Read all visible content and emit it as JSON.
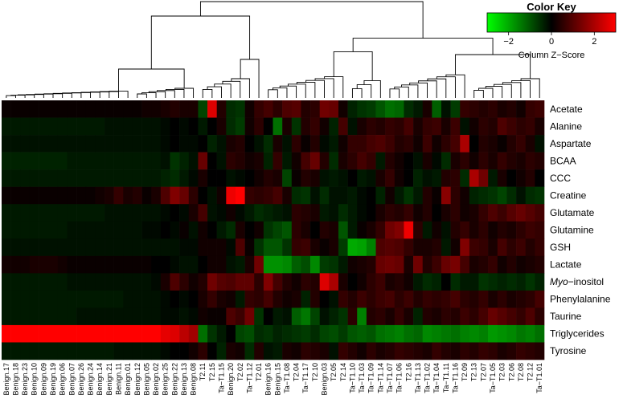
{
  "chart_data": {
    "type": "heatmap",
    "title": "",
    "rows": [
      "Acetate",
      "Alanine",
      "Aspartate",
      "BCAA",
      "CCC",
      "Creatine",
      "Glutamate",
      "Glutamine",
      "GSH",
      "Lactate",
      "Myo−inositol",
      "Phenylalanine",
      "Taurine",
      "Triglycerides",
      "Tyrosine"
    ],
    "row_label_parts": {
      "Myo−inositol": {
        "italic": "Myo",
        "rest": "−inositol"
      }
    },
    "columns": [
      "Benign.17",
      "Benign.18",
      "Benign.23",
      "Benign.10",
      "Benign.09",
      "Benign.19",
      "Benign.06",
      "Benign.07",
      "Benign.26",
      "Benign.24",
      "Benign.14",
      "Benign.21",
      "Benign.11",
      "Benign.01",
      "Benign.12",
      "Benign.05",
      "Benign.02",
      "Benign.25",
      "Benign.22",
      "Benign.13",
      "Benign.08",
      "T2.11",
      "T2.15",
      "Ta−T1.15",
      "Benign.20",
      "T2.02",
      "Ta−T1.12",
      "T2.01",
      "Benign.16",
      "Benign.15",
      "Ta−T1.08",
      "T2.04",
      "Ta−T1.17",
      "T2.10",
      "Benign.03",
      "T2.05",
      "T2.14",
      "Ta−T1.10",
      "Ta−T1.03",
      "Ta−T1.09",
      "Ta−T1.14",
      "Ta−T1.07",
      "Ta−T1.06",
      "T2.16",
      "Ta−T1.13",
      "Ta−T1.02",
      "Ta−T1.04",
      "Ta−T1.11",
      "Ta−T1.16",
      "T2.09",
      "T2.13",
      "T2.07",
      "Ta−T1.05",
      "T2.03",
      "T2.06",
      "T2.08",
      "T2.12",
      "Ta−T1.01"
    ],
    "zlim": [
      -3,
      3
    ],
    "color_scale": {
      "low": "#00ff00",
      "mid": "#000000",
      "high": "#ff0000"
    },
    "color_key": {
      "title": "Color Key",
      "ticks": [
        "−2",
        "0",
        "2"
      ],
      "tick_values": [
        -2,
        0,
        2
      ],
      "label": "Column Z−Score"
    },
    "values": [
      [
        0.1,
        0.1,
        0.1,
        0.1,
        0.1,
        0.1,
        0.1,
        0.1,
        0.1,
        0.1,
        0.1,
        0.1,
        0.1,
        0.1,
        0.1,
        0.2,
        0.2,
        0.3,
        0.4,
        0.3,
        0.3,
        -0.8,
        2.6,
        0.4,
        -0.5,
        -0.6,
        0.2,
        0.6,
        0.8,
        0.5,
        0.9,
        1.0,
        0.4,
        0.5,
        1.3,
        1.2,
        0.2,
        -0.4,
        -0.6,
        -0.7,
        -1.0,
        -1.3,
        -1.2,
        -0.5,
        -0.3,
        0.3,
        -1.1,
        -0.2,
        -0.7,
        0.6,
        0.5,
        0.4,
        0.5,
        0.3,
        0.4,
        0.2,
        0.6,
        0.7
      ],
      [
        -0.3,
        -0.3,
        -0.3,
        -0.3,
        -0.3,
        -0.3,
        -0.3,
        -0.3,
        -0.3,
        -0.3,
        -0.3,
        -0.2,
        -0.2,
        -0.2,
        -0.2,
        -0.2,
        -0.2,
        -0.1,
        0.0,
        -0.1,
        0.0,
        -0.3,
        0.0,
        0.3,
        -0.5,
        -0.7,
        0.2,
        0.5,
        0.0,
        -1.3,
        0.3,
        -0.6,
        0.4,
        0.6,
        0.2,
        -0.4,
        0.8,
        -0.2,
        0.3,
        0.5,
        0.4,
        0.6,
        0.5,
        0.8,
        0.3,
        0.6,
        0.7,
        0.3,
        0.7,
        -0.2,
        0.2,
        0.5,
        0.4,
        0.9,
        0.7,
        0.5,
        0.6,
        0.3
      ],
      [
        -0.2,
        -0.2,
        -0.2,
        -0.2,
        -0.2,
        -0.2,
        -0.2,
        -0.2,
        -0.2,
        -0.2,
        -0.2,
        -0.2,
        -0.2,
        -0.2,
        -0.2,
        -0.2,
        -0.2,
        -0.1,
        0.0,
        -0.1,
        -0.1,
        0.0,
        -0.4,
        -0.2,
        0.3,
        0.4,
        0.0,
        -0.2,
        -0.5,
        0.3,
        -0.2,
        0.5,
        0.1,
        0.4,
        -0.1,
        -0.3,
        0.2,
        0.6,
        0.6,
        0.8,
        0.9,
        0.7,
        0.4,
        0.5,
        0.2,
        0.7,
        0.2,
        0.5,
        0.8,
        2.0,
        0.0,
        0.4,
        0.3,
        0.1,
        0.4,
        0.6,
        0.3,
        -0.2
      ],
      [
        -0.4,
        -0.4,
        -0.4,
        -0.4,
        -0.4,
        -0.4,
        -0.4,
        -0.3,
        -0.3,
        -0.3,
        -0.3,
        -0.3,
        -0.3,
        -0.3,
        -0.3,
        -0.3,
        -0.3,
        -0.2,
        -0.6,
        -0.4,
        -0.2,
        1.2,
        0.0,
        -0.2,
        0.5,
        0.4,
        0.2,
        0.3,
        -0.4,
        0.6,
        -0.3,
        0.2,
        0.8,
        1.2,
        0.4,
        -0.5,
        0.3,
        0.5,
        0.8,
        0.6,
        -0.3,
        0.4,
        0.2,
        0.0,
        -0.2,
        0.3,
        -0.1,
        -0.5,
        0.3,
        0.5,
        0.2,
        0.5,
        0.3,
        0.6,
        0.4,
        0.3,
        0.5,
        0.4
      ],
      [
        -0.3,
        -0.3,
        -0.3,
        -0.3,
        -0.3,
        -0.3,
        -0.3,
        -0.3,
        -0.3,
        -0.3,
        -0.3,
        -0.3,
        -0.3,
        -0.3,
        -0.3,
        -0.3,
        -0.3,
        -0.4,
        -0.5,
        -0.3,
        -0.1,
        0.3,
        0.0,
        0.0,
        -0.2,
        -0.1,
        0.0,
        0.2,
        0.4,
        0.3,
        -0.8,
        0.1,
        0.4,
        0.3,
        -0.2,
        -0.3,
        -0.2,
        0.0,
        -0.3,
        -0.2,
        0.3,
        0.6,
        0.2,
        0.0,
        -0.4,
        -0.2,
        -0.3,
        0.4,
        0.5,
        -0.5,
        2.0,
        1.3,
        -0.3,
        0.3,
        0.0,
        0.2,
        0.4,
        0.0
      ],
      [
        0.1,
        0.1,
        0.1,
        0.1,
        0.1,
        0.1,
        0.1,
        0.1,
        0.1,
        0.1,
        0.2,
        0.3,
        0.6,
        0.3,
        0.4,
        0.1,
        0.3,
        0.9,
        1.5,
        1.2,
        0.5,
        0.0,
        -0.2,
        0.2,
        2.8,
        3.0,
        0.6,
        0.5,
        0.6,
        0.8,
        0.3,
        -0.5,
        -0.6,
        -0.2,
        -0.5,
        -0.2,
        -0.2,
        -0.3,
        -0.1,
        0.0,
        -0.4,
        0.2,
        -0.3,
        -0.6,
        -0.3,
        0.4,
        0.1,
        1.6,
        0.5,
        0.2,
        -0.4,
        -0.5,
        -0.6,
        -0.8,
        -0.5,
        -0.2,
        -0.5,
        -0.6
      ],
      [
        -0.3,
        -0.3,
        -0.3,
        -0.3,
        -0.3,
        -0.3,
        -0.3,
        -0.3,
        -0.3,
        -0.3,
        -0.3,
        -0.2,
        -0.2,
        -0.2,
        -0.2,
        -0.2,
        -0.2,
        -0.1,
        0.0,
        -0.1,
        0.3,
        0.8,
        -0.2,
        -0.1,
        0.2,
        -0.1,
        -0.3,
        -0.5,
        -0.4,
        -0.3,
        -0.2,
        0.5,
        0.4,
        0.3,
        -0.3,
        -0.2,
        -0.5,
        -0.3,
        -0.1,
        0.0,
        0.3,
        0.5,
        0.4,
        0.6,
        0.2,
        0.4,
        0.0,
        0.3,
        0.5,
        0.2,
        0.3,
        0.6,
        0.9,
        0.7,
        1.0,
        1.2,
        1.0,
        0.8
      ],
      [
        -0.3,
        -0.3,
        -0.3,
        -0.3,
        -0.3,
        -0.3,
        -0.3,
        -0.2,
        -0.2,
        -0.2,
        -0.2,
        -0.2,
        -0.2,
        -0.2,
        -0.2,
        -0.1,
        -0.1,
        0.0,
        -0.1,
        0.1,
        -0.2,
        0.2,
        0.0,
        -0.3,
        -0.5,
        0.3,
        0.0,
        0.2,
        -0.6,
        -0.8,
        -1.0,
        0.5,
        0.3,
        0.0,
        0.4,
        0.3,
        -1.0,
        -0.3,
        0.1,
        0.3,
        0.6,
        1.3,
        1.5,
        2.8,
        0.5,
        -0.3,
        0.2,
        -0.2,
        0.4,
        0.6,
        0.3,
        0.5,
        0.2,
        0.4,
        0.3,
        0.5,
        0.7,
        0.6
      ],
      [
        -0.2,
        -0.2,
        -0.2,
        -0.2,
        -0.2,
        -0.2,
        -0.2,
        -0.2,
        -0.2,
        -0.2,
        -0.2,
        -0.2,
        -0.2,
        -0.2,
        -0.2,
        -0.2,
        -0.2,
        -0.2,
        -0.2,
        -0.1,
        -0.1,
        0.2,
        0.2,
        0.2,
        -0.1,
        0.9,
        0.1,
        -0.6,
        -1.0,
        -1.0,
        -0.6,
        0.6,
        0.7,
        0.3,
        0.1,
        0.3,
        -0.7,
        -2.0,
        -1.9,
        -1.5,
        0.9,
        1.0,
        0.9,
        0.6,
        0.3,
        0.3,
        0.4,
        -0.3,
        0.2,
        1.5,
        0.7,
        0.6,
        0.3,
        0.8,
        0.5,
        0.7,
        0.4,
        0.6
      ],
      [
        0.2,
        0.2,
        0.2,
        0.3,
        0.3,
        0.3,
        0.2,
        0.1,
        0.1,
        0.1,
        0.1,
        0.1,
        0.1,
        0.1,
        0.1,
        0.1,
        0.0,
        0.0,
        -0.1,
        -0.2,
        -0.2,
        0.0,
        0.2,
        0.2,
        -0.2,
        -0.3,
        0.3,
        1.3,
        -1.7,
        -1.7,
        -1.6,
        -1.1,
        -0.9,
        -1.6,
        -0.7,
        -0.6,
        -0.3,
        0.2,
        0.3,
        0.4,
        1.2,
        1.3,
        1.2,
        0.3,
        1.3,
        0.4,
        0.7,
        1.2,
        1.4,
        0.8,
        0.3,
        0.4,
        0.6,
        0.2,
        0.4,
        0.2,
        0.3,
        0.4
      ],
      [
        -0.3,
        -0.3,
        -0.3,
        -0.3,
        -0.3,
        -0.3,
        -0.3,
        -0.2,
        -0.2,
        -0.2,
        -0.2,
        -0.2,
        -0.2,
        -0.2,
        -0.2,
        -0.2,
        -0.1,
        0.3,
        0.9,
        0.5,
        0.2,
        0.4,
        1.3,
        1.0,
        0.9,
        1.1,
        1.1,
        0.5,
        1.5,
        0.8,
        0.4,
        0.2,
        0.5,
        0.4,
        2.6,
        2.0,
        0.3,
        0.0,
        0.2,
        0.5,
        0.7,
        0.3,
        0.4,
        0.2,
        -0.3,
        -0.5,
        -0.4,
        0.0,
        -0.5,
        -0.3,
        -0.3,
        -0.6,
        -0.5,
        -0.4,
        -0.5,
        -0.4,
        -0.6,
        -0.4
      ],
      [
        -0.3,
        -0.3,
        -0.3,
        -0.3,
        -0.3,
        -0.3,
        -0.3,
        -0.3,
        -0.3,
        -0.3,
        -0.3,
        -0.3,
        -0.3,
        -0.2,
        -0.2,
        -0.2,
        -0.2,
        -0.1,
        0.0,
        -0.1,
        0.0,
        0.3,
        0.6,
        0.3,
        0.2,
        -0.3,
        0.6,
        0.5,
        0.8,
        0.4,
        0.2,
        0.3,
        -0.4,
        0.4,
        0.0,
        -0.2,
        0.6,
        0.4,
        0.7,
        0.5,
        0.7,
        0.8,
        0.5,
        0.7,
        0.4,
        0.6,
        0.5,
        0.6,
        0.8,
        0.5,
        0.4,
        0.6,
        0.3,
        0.5,
        0.3,
        0.4,
        0.5,
        0.8
      ],
      [
        -0.3,
        -0.3,
        -0.3,
        -0.3,
        -0.3,
        -0.3,
        -0.3,
        -0.3,
        -0.2,
        -0.2,
        -0.2,
        -0.2,
        -0.2,
        -0.2,
        -0.2,
        -0.2,
        -0.2,
        -0.1,
        -0.1,
        -0.2,
        -0.1,
        0.2,
        0.1,
        0.1,
        0.9,
        0.7,
        1.3,
        -0.6,
        0.0,
        -0.3,
        -0.2,
        -1.1,
        -1.4,
        -0.8,
        -0.2,
        -0.4,
        -0.6,
        0.5,
        -1.5,
        0.4,
        0.5,
        0.3,
        0.6,
        0.3,
        -0.4,
        0.4,
        0.3,
        0.5,
        0.4,
        0.7,
        0.5,
        0.8,
        1.2,
        1.0,
        0.8,
        0.6,
        0.9,
        0.5
      ],
      [
        3.0,
        3.0,
        3.0,
        3.0,
        3.0,
        3.0,
        3.0,
        3.0,
        3.0,
        3.0,
        3.0,
        3.0,
        3.0,
        3.0,
        3.0,
        3.0,
        3.0,
        2.7,
        2.6,
        2.2,
        1.9,
        -1.3,
        -0.6,
        -0.3,
        0.0,
        -0.8,
        -0.9,
        -0.5,
        -0.6,
        -0.4,
        -0.5,
        -0.6,
        -0.7,
        -0.5,
        -0.8,
        -0.9,
        -0.7,
        -1.0,
        -1.1,
        -1.0,
        -1.3,
        -1.4,
        -1.5,
        -1.3,
        -1.2,
        -1.6,
        -1.5,
        -1.4,
        -1.3,
        -1.5,
        -1.6,
        -1.5,
        -1.8,
        -1.7,
        -1.6,
        -1.4,
        -1.5,
        -1.3
      ],
      [
        -0.3,
        -0.3,
        -0.3,
        -0.3,
        -0.3,
        -0.3,
        -0.3,
        -0.3,
        -0.3,
        -0.3,
        -0.3,
        -0.3,
        -0.2,
        -0.2,
        -0.2,
        -0.2,
        -0.2,
        -0.1,
        0.0,
        0.0,
        0.2,
        0.5,
        0.0,
        -0.4,
        0.3,
        0.2,
        -0.5,
        0.4,
        -0.2,
        -0.3,
        0.3,
        0.2,
        0.5,
        0.4,
        0.3,
        -0.2,
        0.6,
        0.4,
        0.2,
        0.5,
        0.3,
        0.4,
        0.6,
        0.5,
        0.4,
        0.3,
        0.6,
        0.4,
        0.3,
        0.5,
        0.4,
        0.6,
        0.5,
        0.3,
        0.4,
        0.6,
        0.5,
        0.4
      ]
    ]
  }
}
